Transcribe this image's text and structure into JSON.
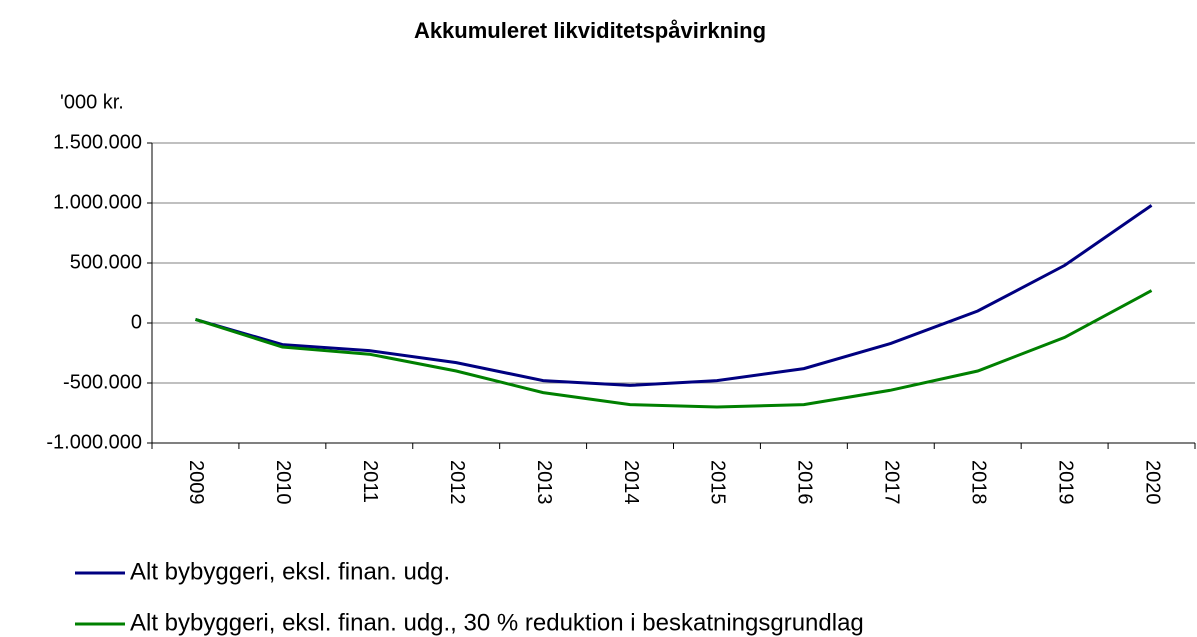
{
  "chart_data": {
    "type": "line",
    "title": "Akkumuleret likviditetspåvirkning",
    "y_axis_label": "'000 kr.",
    "categories": [
      "2009",
      "2010",
      "2011",
      "2012",
      "2013",
      "2014",
      "2015",
      "2016",
      "2017",
      "2018",
      "2019",
      "2020"
    ],
    "series": [
      {
        "name": "Alt bybyggeri, eksl. finan. udg.",
        "color": "#000080",
        "values": [
          30000,
          -180000,
          -230000,
          -330000,
          -480000,
          -520000,
          -480000,
          -380000,
          -170000,
          100000,
          480000,
          980000
        ]
      },
      {
        "name": "Alt bybyggeri, eksl. finan. udg., 30 % reduktion i beskatningsgrundlag",
        "color": "#008000",
        "values": [
          30000,
          -200000,
          -260000,
          -400000,
          -580000,
          -680000,
          -700000,
          -680000,
          -560000,
          -400000,
          -120000,
          270000
        ]
      }
    ],
    "ylim": [
      -1000000,
      1500000
    ],
    "yticks": [
      {
        "value": -1000000,
        "label": "-1.000.000"
      },
      {
        "value": -500000,
        "label": "-500.000"
      },
      0,
      {
        "value": 500000,
        "label": "500.000"
      },
      {
        "value": 1000000,
        "label": "1.000.000"
      },
      {
        "value": 1500000,
        "label": "1.500.000"
      }
    ],
    "grid": true,
    "legend": "bottom"
  }
}
